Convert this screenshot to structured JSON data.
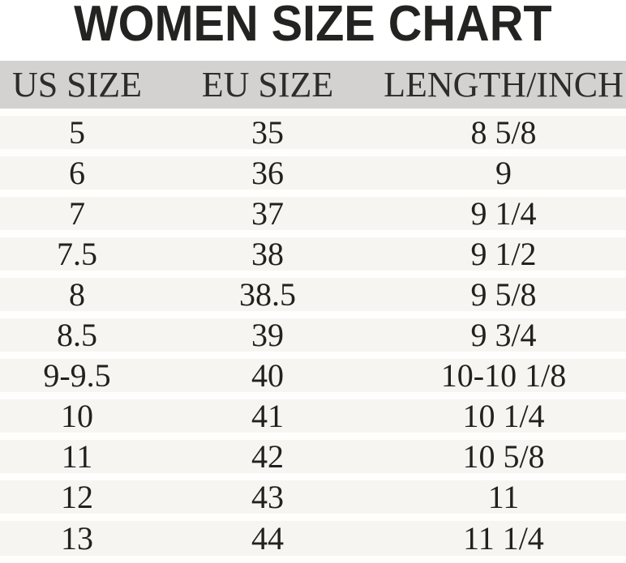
{
  "title": "WOMEN SIZE CHART",
  "table": {
    "headers": [
      "US SIZE",
      "EU SIZE",
      "LENGTH/INCH"
    ],
    "rows": [
      [
        "5",
        "35",
        "8 5/8"
      ],
      [
        "6",
        "36",
        "9"
      ],
      [
        "7",
        "37",
        "9 1/4"
      ],
      [
        "7.5",
        "38",
        "9 1/2"
      ],
      [
        "8",
        "38.5",
        "9 5/8"
      ],
      [
        "8.5",
        "39",
        "9 3/4"
      ],
      [
        "9-9.5",
        "40",
        "10-10 1/8"
      ],
      [
        "10",
        "41",
        "10 1/4"
      ],
      [
        "11",
        "42",
        "10 5/8"
      ],
      [
        "12",
        "43",
        "11"
      ],
      [
        "13",
        "44",
        "11 1/4"
      ]
    ]
  },
  "chart_data": {
    "type": "table",
    "title": "WOMEN SIZE CHART",
    "columns": [
      "US SIZE",
      "EU SIZE",
      "LENGTH/INCH"
    ],
    "rows": [
      [
        "5",
        "35",
        "8 5/8"
      ],
      [
        "6",
        "36",
        "9"
      ],
      [
        "7",
        "37",
        "9 1/4"
      ],
      [
        "7.5",
        "38",
        "9 1/2"
      ],
      [
        "8",
        "38.5",
        "9 5/8"
      ],
      [
        "8.5",
        "39",
        "9 3/4"
      ],
      [
        "9-9.5",
        "40",
        "10-10 1/8"
      ],
      [
        "10",
        "41",
        "10 1/4"
      ],
      [
        "11",
        "42",
        "10 5/8"
      ],
      [
        "12",
        "43",
        "11"
      ],
      [
        "13",
        "44",
        "11 1/4"
      ]
    ]
  },
  "colors": {
    "header_bg": "#d3d2d0",
    "header_text": "#2d2c29",
    "row_bg": "#f6f5f1",
    "separator": "#fffefc",
    "cell_text": "#21211f",
    "title_text": "#232321"
  }
}
